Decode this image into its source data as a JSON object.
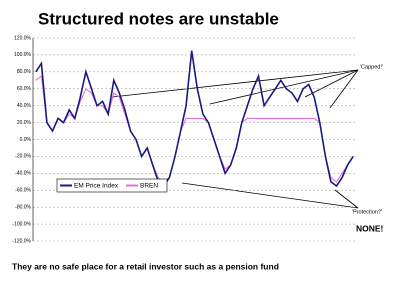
{
  "chart_data": {
    "type": "line",
    "title": "Structured notes are unstable",
    "subtitle": "They are no safe place for a retail investor such as a pension fund",
    "annotations": [
      "'Capped!'",
      "'Protection?'",
      "NONE!"
    ],
    "categories": [
      null,
      null,
      null,
      null,
      null,
      null,
      null,
      null,
      null,
      null,
      null,
      null,
      null,
      null,
      null,
      null,
      null,
      null,
      null,
      null,
      null,
      null,
      null,
      null,
      null,
      null,
      null,
      null,
      null,
      null,
      null,
      null,
      null,
      null,
      null,
      null,
      null,
      null,
      null,
      null,
      null,
      null,
      null,
      null,
      null,
      null,
      null,
      null,
      null,
      null,
      null,
      null,
      null,
      null,
      null,
      null,
      null,
      null
    ],
    "series": [
      {
        "name": "EM Price Index",
        "color": "#1a1a80",
        "values": [
          80,
          90,
          20,
          10,
          25,
          20,
          35,
          25,
          50,
          80,
          60,
          40,
          45,
          30,
          70,
          55,
          35,
          10,
          0,
          -20,
          -10,
          -30,
          -50,
          -55,
          -45,
          -20,
          10,
          40,
          105,
          60,
          30,
          20,
          0,
          -20,
          -40,
          -30,
          -10,
          20,
          40,
          60,
          75,
          40,
          50,
          60,
          70,
          60,
          55,
          45,
          60,
          65,
          50,
          20,
          -20,
          -50,
          -55,
          -45,
          -30,
          -20
        ]
      },
      {
        "name": "BREN",
        "color": "#e070d8",
        "values": [
          70,
          75,
          20,
          10,
          25,
          20,
          30,
          25,
          45,
          60,
          55,
          40,
          40,
          30,
          55,
          50,
          30,
          10,
          0,
          -20,
          -10,
          -30,
          -45,
          -50,
          -45,
          -20,
          10,
          25,
          25,
          25,
          25,
          20,
          0,
          -20,
          -35,
          -30,
          -10,
          20,
          25,
          25,
          25,
          25,
          25,
          25,
          25,
          25,
          25,
          25,
          25,
          25,
          25,
          20,
          -20,
          -45,
          -50,
          -40,
          -30,
          -20
        ]
      }
    ],
    "ylim": [
      -120,
      120
    ],
    "yticks": [
      {
        "value": -120,
        "label": "-120.0%"
      },
      {
        "value": -100,
        "label": "-100.0%"
      },
      {
        "value": -80,
        "label": "-80.0%"
      },
      {
        "value": -60,
        "label": "-60.0%"
      },
      {
        "value": -40,
        "label": "-40.0%"
      },
      {
        "value": -20,
        "label": "-20.0%"
      },
      {
        "value": 0,
        "label": "0.0%"
      },
      {
        "value": 20,
        "label": "20.0%"
      },
      {
        "value": 40,
        "label": "40.0%"
      },
      {
        "value": 60,
        "label": "60.0%"
      },
      {
        "value": 80,
        "label": "80.0%"
      },
      {
        "value": 100,
        "label": "100.0%"
      },
      {
        "value": 120,
        "label": "120.0%"
      }
    ],
    "grid": true
  }
}
